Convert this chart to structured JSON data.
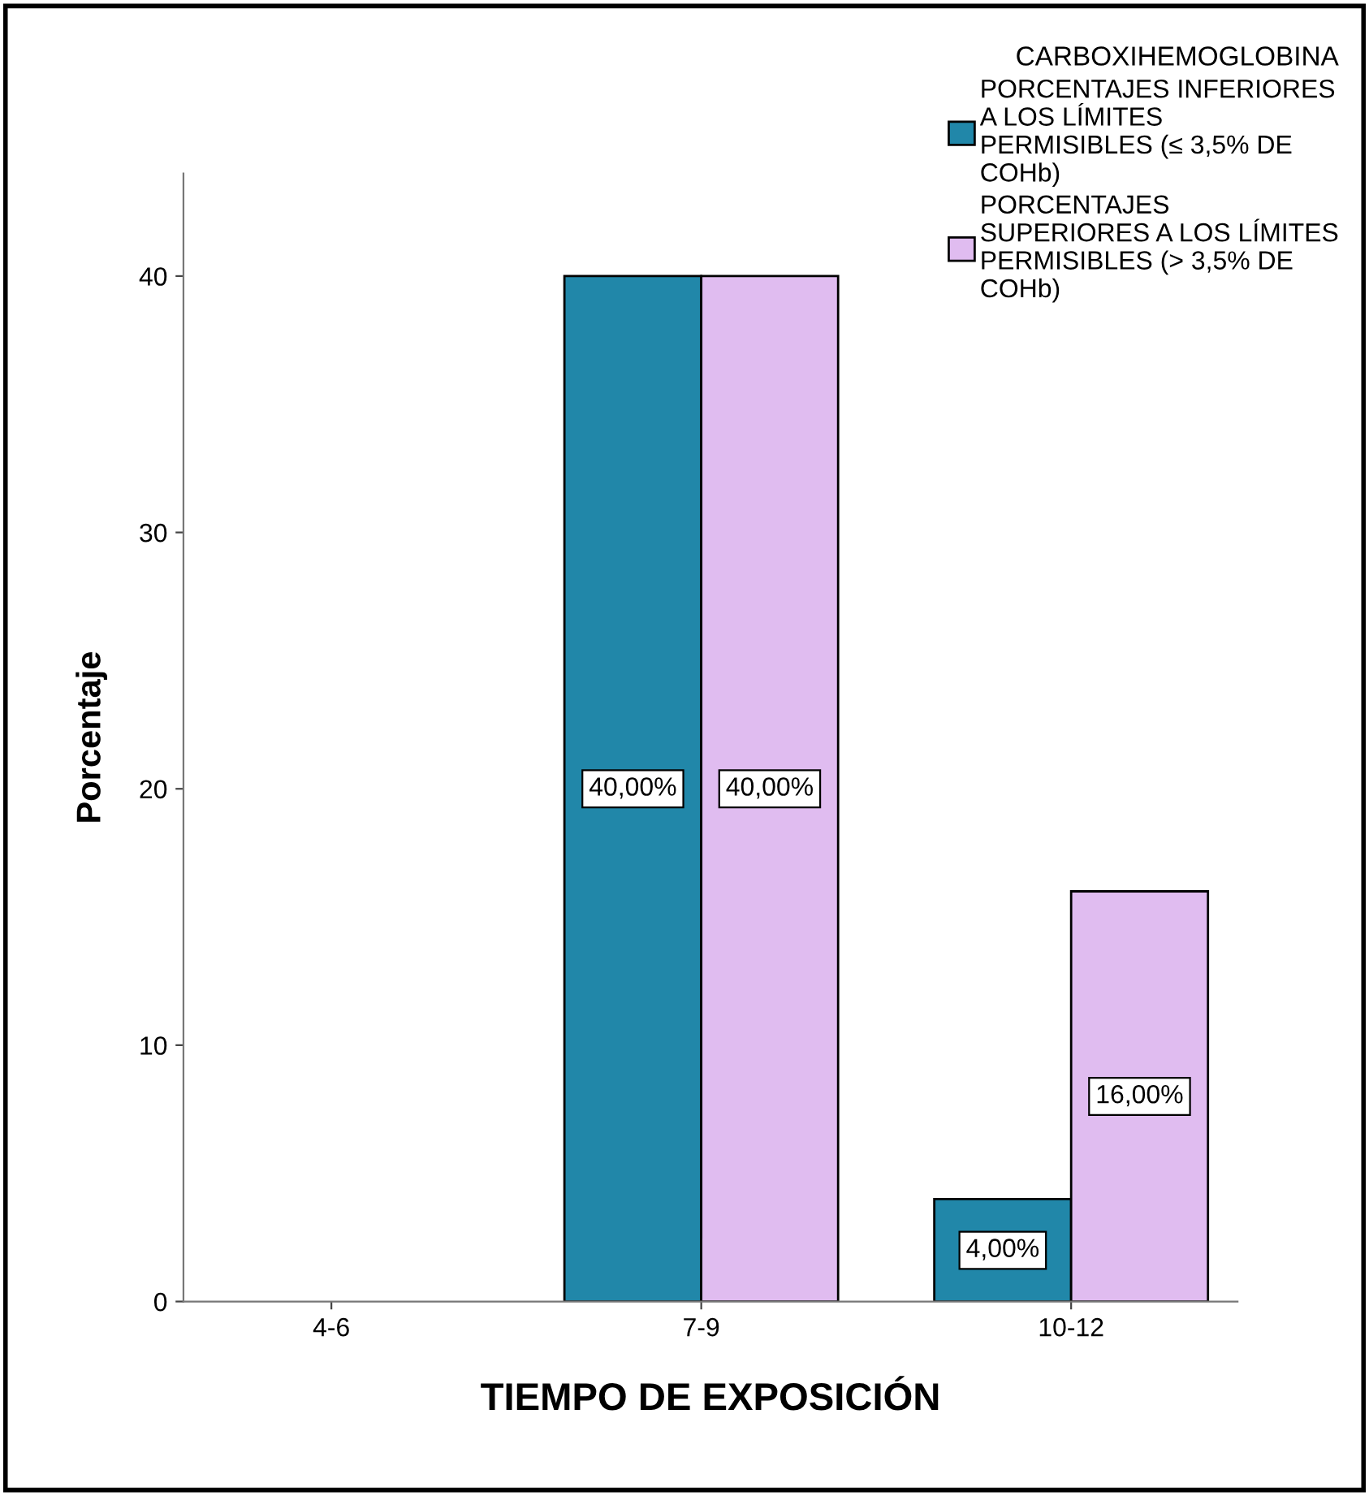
{
  "chart_data": {
    "type": "bar",
    "xlabel": "TIEMPO DE EXPOSICIÓN",
    "ylabel": "Porcentaje",
    "legend_title": "CARBOXIHEMOGLOBINA",
    "legend": "top right",
    "grid": false,
    "categories": [
      "4-6",
      "7-9",
      "10-12"
    ],
    "series": [
      {
        "name": "PORCENTAJES INFERIORES\nA LOS LÍMITES\nPERMISIBLES (≤ 3,5% DE\nCOHb)",
        "color": "#2187a9",
        "values": [
          null,
          40,
          4
        ],
        "value_labels": [
          null,
          "40,00%",
          "4,00%"
        ]
      },
      {
        "name": "PORCENTAJES\nSUPERIORES A LOS LÍMITES\nPERMISIBLES (> 3,5% DE\nCOHb)",
        "color": "#e0bcf0",
        "values": [
          null,
          40,
          16
        ],
        "value_labels": [
          null,
          "40,00%",
          "16,00%"
        ]
      }
    ],
    "ylim": [
      0,
      44
    ],
    "yticks": [
      0,
      10,
      20,
      30,
      40
    ]
  }
}
